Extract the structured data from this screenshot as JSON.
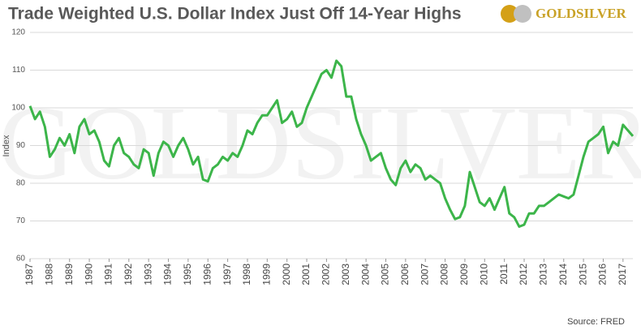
{
  "chart_data": {
    "type": "line",
    "title": "Trade Weighted U.S. Dollar Index Just Off 14-Year Highs",
    "logo": "GOLDSILVER",
    "watermark": "GOLDSILVER",
    "y_label": "Index",
    "source": "Source: FRED",
    "xlim": [
      1987,
      2017.5
    ],
    "xticks": [
      1987,
      1988,
      1989,
      1990,
      1991,
      1992,
      1993,
      1994,
      1995,
      1996,
      1997,
      1998,
      1999,
      2000,
      2001,
      2002,
      2003,
      2004,
      2005,
      2006,
      2007,
      2008,
      2009,
      2010,
      2011,
      2012,
      2013,
      2014,
      2015,
      2016,
      2017
    ],
    "ylim": [
      60,
      120
    ],
    "yticks": [
      60,
      70,
      80,
      90,
      100,
      110,
      120
    ],
    "grid": true,
    "x": [
      1987,
      1987.25,
      1987.5,
      1987.75,
      1988,
      1988.25,
      1988.5,
      1988.75,
      1989,
      1989.25,
      1989.5,
      1989.75,
      1990,
      1990.25,
      1990.5,
      1990.75,
      1991,
      1991.25,
      1991.5,
      1991.75,
      1992,
      1992.25,
      1992.5,
      1992.75,
      1993,
      1993.25,
      1993.5,
      1993.75,
      1994,
      1994.25,
      1994.5,
      1994.75,
      1995,
      1995.25,
      1995.5,
      1995.75,
      1996,
      1996.25,
      1996.5,
      1996.75,
      1997,
      1997.25,
      1997.5,
      1997.75,
      1998,
      1998.25,
      1998.5,
      1998.75,
      1999,
      1999.25,
      1999.5,
      1999.75,
      2000,
      2000.25,
      2000.5,
      2000.75,
      2001,
      2001.25,
      2001.5,
      2001.75,
      2002,
      2002.25,
      2002.5,
      2002.75,
      2003,
      2003.25,
      2003.5,
      2003.75,
      2004,
      2004.25,
      2004.5,
      2004.75,
      2005,
      2005.25,
      2005.5,
      2005.75,
      2006,
      2006.25,
      2006.5,
      2006.75,
      2007,
      2007.25,
      2007.5,
      2007.75,
      2008,
      2008.25,
      2008.5,
      2008.75,
      2009,
      2009.25,
      2009.5,
      2009.75,
      2010,
      2010.25,
      2010.5,
      2010.75,
      2011,
      2011.25,
      2011.5,
      2011.75,
      2012,
      2012.25,
      2012.5,
      2012.75,
      2013,
      2013.25,
      2013.5,
      2013.75,
      2014,
      2014.25,
      2014.5,
      2014.75,
      2015,
      2015.25,
      2015.5,
      2015.75,
      2016,
      2016.25,
      2016.5,
      2016.75,
      2017,
      2017.25,
      2017.5
    ],
    "series": [
      {
        "name": "Index",
        "color": "#3cb54a",
        "values": [
          100.5,
          97,
          99,
          95,
          87,
          89,
          92,
          90,
          93,
          88,
          95,
          97,
          93,
          94,
          91,
          86,
          84.5,
          90,
          92,
          88,
          87,
          85,
          84,
          89,
          88,
          82,
          88,
          91,
          90,
          87,
          90,
          92,
          89,
          85,
          87,
          81,
          80.5,
          84,
          85,
          87,
          86,
          88,
          87,
          90,
          94,
          93,
          96,
          98,
          98,
          100,
          102,
          96,
          97,
          99,
          95,
          96,
          100,
          103,
          106,
          109,
          110,
          108,
          112.5,
          111,
          103,
          103,
          97,
          93,
          90,
          86,
          87,
          88,
          84,
          81,
          79.5,
          84,
          86,
          83,
          85,
          84,
          81,
          82,
          81,
          80,
          76,
          73,
          70.5,
          71,
          74,
          83,
          79,
          75,
          74,
          76,
          73,
          76,
          79,
          72,
          71,
          68.5,
          69,
          72,
          72,
          74,
          74,
          75,
          76,
          77,
          76.5,
          76,
          77,
          82,
          87,
          91,
          92,
          93,
          95,
          88,
          91,
          90,
          95.5,
          94,
          92.5
        ]
      }
    ]
  }
}
